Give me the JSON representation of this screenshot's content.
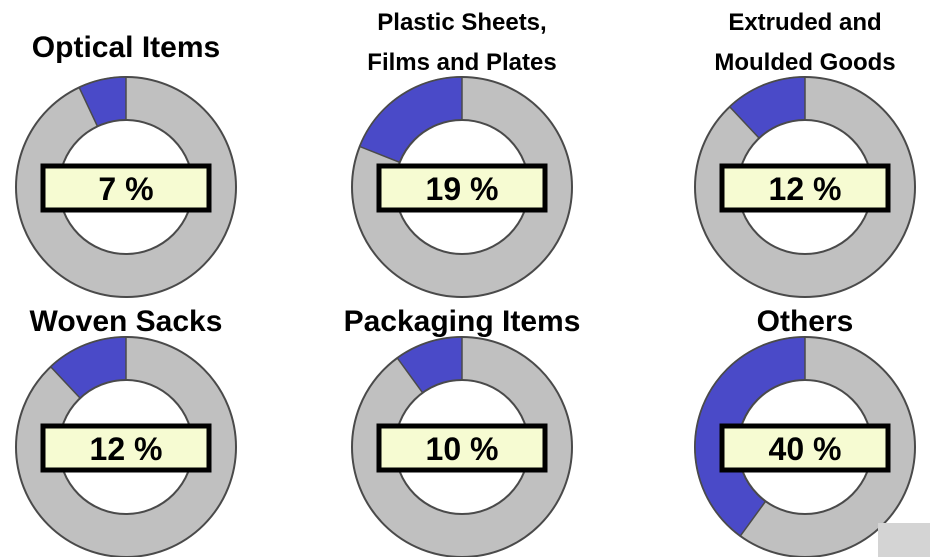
{
  "colors": {
    "segment": "#4a4ac8",
    "remainder": "#c0c0c0",
    "ring_stroke": "#4a4a4a",
    "label_fill": "#f6fbd2",
    "label_border": "#000000",
    "background": "#ffffff"
  },
  "chart_data": [
    {
      "type": "pie",
      "title_lines": [
        "Optical Items"
      ],
      "value": 7,
      "label": "7 %"
    },
    {
      "type": "pie",
      "title_lines": [
        "Plastic Sheets,",
        "Films and Plates"
      ],
      "value": 19,
      "label": "19 %"
    },
    {
      "type": "pie",
      "title_lines": [
        "Extruded and",
        "Moulded Goods"
      ],
      "value": 12,
      "label": "12 %"
    },
    {
      "type": "pie",
      "title_lines": [
        "Woven Sacks"
      ],
      "value": 12,
      "label": "12 %"
    },
    {
      "type": "pie",
      "title_lines": [
        "Packaging Items"
      ],
      "value": 10,
      "label": "10 %"
    },
    {
      "type": "pie",
      "title_lines": [
        "Others"
      ],
      "value": 40,
      "label": "40 %"
    }
  ]
}
